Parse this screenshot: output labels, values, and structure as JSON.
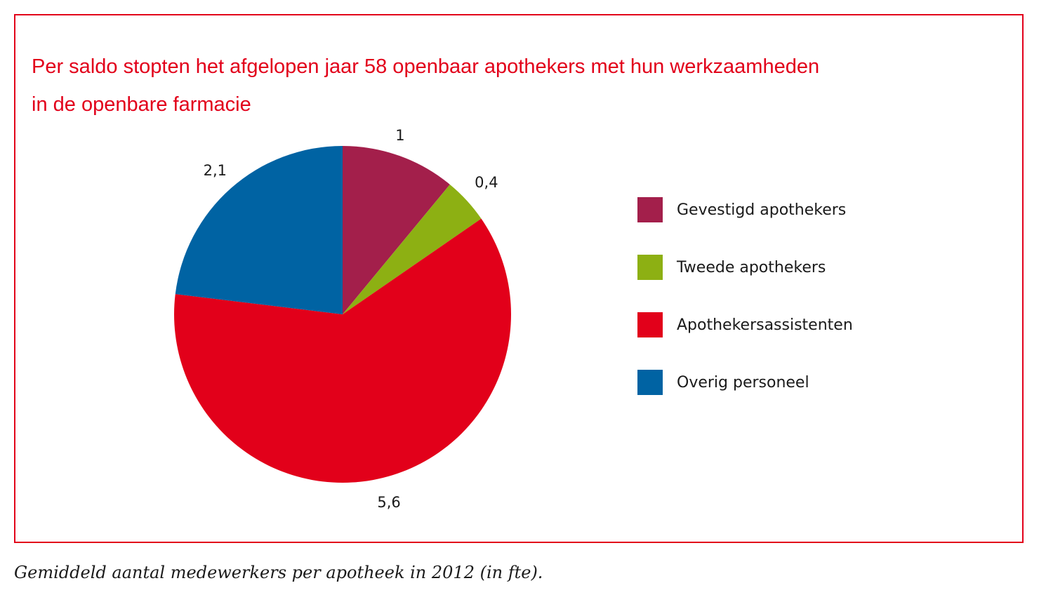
{
  "chart_data": {
    "type": "pie",
    "title": "Per saldo stopten het afgelopen jaar 58 openbaar apothekers met hun werkzaamheden in de openbare farmacie",
    "title_lines": [
      "Per saldo stopten het afgelopen jaar 58 openbaar apothekers met hun werkzaamheden",
      "in de openbare farmacie"
    ],
    "start": "top",
    "direction": "clockwise",
    "legend_placement": "right",
    "slices": [
      {
        "name": "Gevestigd apothekers",
        "value": 1.0,
        "label": "1",
        "color": "#a31f4b"
      },
      {
        "name": "Tweede apothekers",
        "value": 0.4,
        "label": "0,4",
        "color": "#8db013"
      },
      {
        "name": "Apothekersassistenten",
        "value": 5.6,
        "label": "5,6",
        "color": "#e2001a"
      },
      {
        "name": "Overig personeel",
        "value": 2.1,
        "label": "2,1",
        "color": "#0063a3"
      }
    ]
  },
  "caption": "Gemiddeld aantal medewerkers per apotheek in 2012 (in fte).",
  "colors": {
    "accent": "#e2001a",
    "text": "#1a1a1a"
  }
}
